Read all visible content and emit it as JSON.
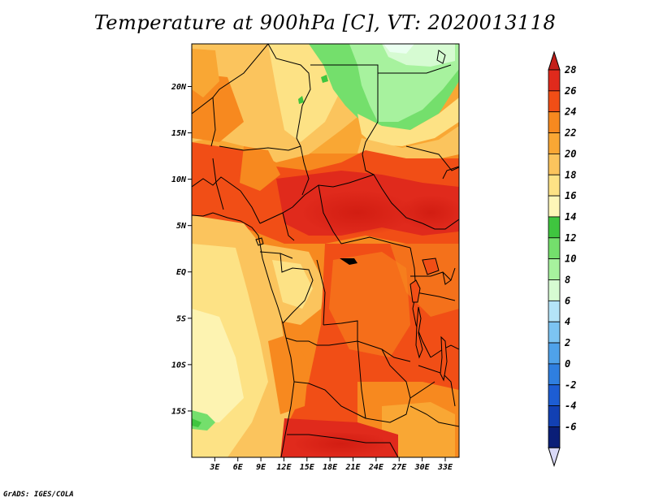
{
  "title": "Temperature at 900hPa [C], VT: 2020013118",
  "credit": "GrADS: IGES/COLA",
  "map": {
    "lat_labels": [
      "20N",
      "15N",
      "10N",
      "5N",
      "EQ",
      "5S",
      "10S",
      "15S"
    ],
    "lat_values": [
      20,
      15,
      10,
      5,
      0,
      -5,
      -10,
      -15
    ],
    "lon_labels": [
      "3E",
      "6E",
      "9E",
      "12E",
      "15E",
      "18E",
      "21E",
      "24E",
      "27E",
      "30E",
      "33E"
    ],
    "lon_values": [
      3,
      6,
      9,
      12,
      15,
      18,
      21,
      24,
      27,
      30,
      33
    ],
    "lat_range": [
      -20,
      24.6
    ],
    "lon_range": [
      0,
      34.8
    ]
  },
  "colorbar": {
    "labels": [
      "28",
      "26",
      "24",
      "22",
      "20",
      "18",
      "16",
      "14",
      "12",
      "10",
      "8",
      "6",
      "4",
      "2",
      "0",
      "-2",
      "-4",
      "-6"
    ],
    "colors": [
      "#e02a1c",
      "#f14e16",
      "#f7891f",
      "#f9a734",
      "#fbc45d",
      "#fde285",
      "#fdf6b8",
      "#3fc53f",
      "#74df6c",
      "#a7f29e",
      "#d6fbd2",
      "#b4e4f8",
      "#7cc4f2",
      "#4fa2ea",
      "#2f7fe0",
      "#1d5dd3",
      "#1240b3",
      "#0a1e77"
    ],
    "top_tip_color": "#c41f1a",
    "bottom_tip_color": "#d9d9f7"
  },
  "chart_data": {
    "type": "heatmap",
    "title": "Temperature at 900hPa [C], VT: 2020013118",
    "variable": "Temperature at 900hPa",
    "units": "C",
    "valid_time": "2020013118",
    "x_ticks": [
      "3E",
      "6E",
      "9E",
      "12E",
      "15E",
      "18E",
      "21E",
      "24E",
      "27E",
      "30E",
      "33E"
    ],
    "y_ticks": [
      "20N",
      "15N",
      "10N",
      "5N",
      "EQ",
      "5S",
      "10S",
      "15S"
    ],
    "contour_levels": [
      -6,
      -4,
      -2,
      0,
      2,
      4,
      6,
      8,
      10,
      12,
      14,
      16,
      18,
      20,
      22,
      24,
      26,
      28
    ]
  }
}
